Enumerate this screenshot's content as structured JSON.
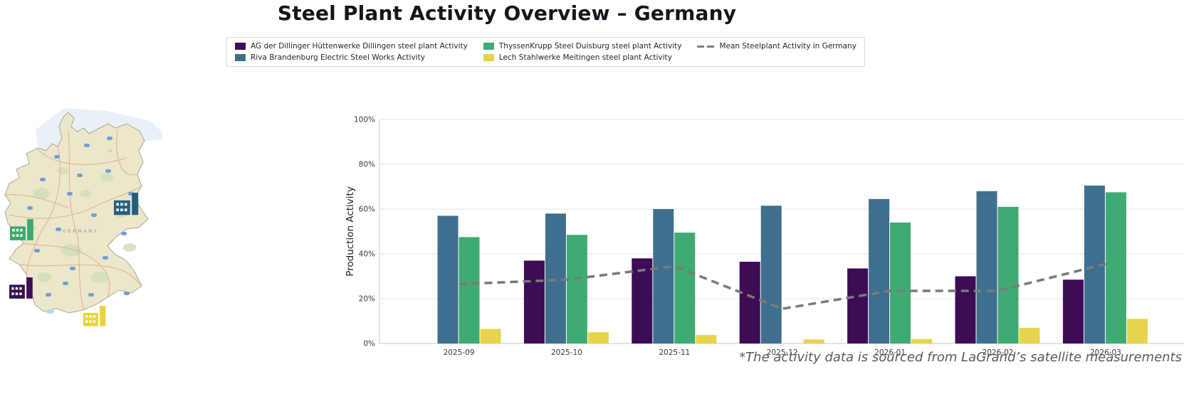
{
  "title": "Steel Plant Activity Overview – Germany",
  "legend": {
    "items": [
      {
        "label": "AG der Dillinger Hüttenwerke Dillingen steel plant Activity",
        "color": "#3d0c55",
        "swatch": "bar"
      },
      {
        "label": "Riva Brandenburg Electric Steel Works Activity",
        "color": "#3e6f8e",
        "swatch": "bar"
      },
      {
        "label": "ThyssenKrupp Steel Duisburg steel plant Activity",
        "color": "#3fab73",
        "swatch": "bar"
      },
      {
        "label": "Lech Stahlwerke Meitingen steel plant Activity",
        "color": "#e8d44b",
        "swatch": "bar"
      },
      {
        "label": "Mean Steelplant Activity in Germany",
        "color": "#7f7f7f",
        "swatch": "dashed-line"
      }
    ]
  },
  "map": {
    "country_label": "GERMANY",
    "markers": [
      {
        "plant": "ThyssenKrupp Steel Duisburg",
        "region": "west",
        "color": "#3aa96f"
      },
      {
        "plant": "Riva Brandenburg Electric Steel Works",
        "region": "east",
        "color": "#265e7d"
      },
      {
        "plant": "AG der Dillinger Hüttenwerke Dillingen",
        "region": "southwest",
        "color": "#3a0d54"
      },
      {
        "plant": "Lech Stahlwerke Meitingen",
        "region": "south",
        "color": "#e9d43e"
      }
    ]
  },
  "chart_data": {
    "type": "bar",
    "title": "",
    "xlabel": "",
    "ylabel": "Production Activity",
    "ylim": [
      0,
      100
    ],
    "yticks": [
      0,
      20,
      40,
      60,
      80,
      100
    ],
    "ytick_format": "percent",
    "grid": "horizontal",
    "legend_position": "top",
    "categories": [
      "2025-09",
      "2025-10",
      "2025-11",
      "2025-12",
      "2026-01",
      "2026-02",
      "2026-03"
    ],
    "series": [
      {
        "key": "dillinger",
        "name": "AG der Dillinger Hüttenwerke Dillingen steel plant Activity",
        "color": "#3d0c55",
        "values": [
          0,
          37,
          38,
          36.5,
          33.5,
          30,
          28.5
        ]
      },
      {
        "key": "riva",
        "name": "Riva Brandenburg Electric Steel Works Activity",
        "color": "#3e6f8e",
        "values": [
          57,
          58,
          60,
          61.5,
          64.5,
          68,
          70.5
        ]
      },
      {
        "key": "thyssenkrupp",
        "name": "ThyssenKrupp Steel Duisburg steel plant Activity",
        "color": "#3fab73",
        "values": [
          47.5,
          48.5,
          49.5,
          0,
          54,
          61,
          67.5
        ]
      },
      {
        "key": "lech",
        "name": "Lech Stahlwerke Meitingen steel plant Activity",
        "color": "#e8d44b",
        "values": [
          6.5,
          5,
          3.8,
          1.8,
          2,
          7,
          11
        ]
      }
    ],
    "mean_line": {
      "key": "mean",
      "name": "Mean Steelplant Activity in Germany",
      "color": "#7a7a7a",
      "style": "dashed",
      "values": [
        26.5,
        28.5,
        34.5,
        15.5,
        23.5,
        23.5,
        35.5
      ]
    }
  },
  "footnote": "*The activity data is sourced from LaGrand’s satellite measurements"
}
